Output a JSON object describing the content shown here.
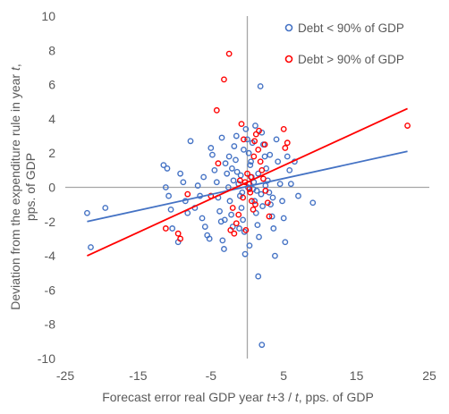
{
  "chart_data": {
    "type": "scatter",
    "xlabel": "Forecast error real GDP year t+3 / t, pps. of GDP",
    "xlabel_parts": [
      {
        "text": "Forecast error real GDP year ",
        "italic": false
      },
      {
        "text": "t",
        "italic": true
      },
      {
        "text": "+3 / ",
        "italic": false
      },
      {
        "text": "t",
        "italic": true
      },
      {
        "text": ", pps. of GDP",
        "italic": false
      }
    ],
    "ylabel_line1_parts": [
      {
        "text": "Deviation from the expenditure rule in year ",
        "italic": false
      },
      {
        "text": "t",
        "italic": true
      },
      {
        "text": ",",
        "italic": false
      }
    ],
    "ylabel_line2": "pps. of GDP",
    "xlim": [
      -25,
      25
    ],
    "ylim": [
      -10,
      10
    ],
    "xticks": [
      "-25",
      "-15",
      "-5",
      "5",
      "15",
      "25"
    ],
    "yticks": [
      "10",
      "8",
      "6",
      "4",
      "2",
      "0",
      "-2",
      "-4",
      "-6",
      "-8",
      "-10"
    ],
    "legend_position": "top-right",
    "series": [
      {
        "name": "Debt < 90% of GDP",
        "color": "#4472c4",
        "marker": "circle-open",
        "trendline": {
          "x": [
            -22,
            22
          ],
          "y": [
            -2.0,
            2.1
          ]
        },
        "points": [
          [
            -22,
            -1.5
          ],
          [
            -21.5,
            -3.5
          ],
          [
            -19.5,
            -1.2
          ],
          [
            -11.5,
            1.3
          ],
          [
            -11.2,
            0.0
          ],
          [
            -11.0,
            1.1
          ],
          [
            -10.8,
            -0.5
          ],
          [
            -10.5,
            -1.3
          ],
          [
            -10.3,
            -2.4
          ],
          [
            -9.5,
            -3.2
          ],
          [
            -9.2,
            0.8
          ],
          [
            -8.8,
            0.3
          ],
          [
            -8.5,
            -0.8
          ],
          [
            -8.2,
            -1.5
          ],
          [
            -7.8,
            2.7
          ],
          [
            -7.2,
            -1.2
          ],
          [
            -6.8,
            0.1
          ],
          [
            -6.5,
            -0.5
          ],
          [
            -6.2,
            -1.8
          ],
          [
            -6.0,
            0.6
          ],
          [
            -5.8,
            -2.3
          ],
          [
            -5.5,
            -2.8
          ],
          [
            -5.2,
            -3.0
          ],
          [
            -5.0,
            2.3
          ],
          [
            -4.8,
            1.9
          ],
          [
            -4.5,
            1.0
          ],
          [
            -4.2,
            0.3
          ],
          [
            -4.0,
            -0.6
          ],
          [
            -3.8,
            -1.4
          ],
          [
            -3.6,
            -2.0
          ],
          [
            -3.4,
            -3.1
          ],
          [
            -3.2,
            -3.6
          ],
          [
            -3.0,
            1.4
          ],
          [
            -2.8,
            0.8
          ],
          [
            -2.6,
            0.0
          ],
          [
            -2.4,
            -0.8
          ],
          [
            -2.2,
            -1.6
          ],
          [
            -2.0,
            -2.3
          ],
          [
            -1.8,
            2.4
          ],
          [
            -1.6,
            1.6
          ],
          [
            -1.4,
            0.9
          ],
          [
            -1.2,
            0.2
          ],
          [
            -1.0,
            -0.5
          ],
          [
            -0.8,
            -1.2
          ],
          [
            -0.6,
            -1.9
          ],
          [
            -0.4,
            -2.6
          ],
          [
            -0.2,
            3.4
          ],
          [
            0.0,
            2.8
          ],
          [
            0.2,
            2.0
          ],
          [
            0.4,
            1.3
          ],
          [
            0.6,
            0.6
          ],
          [
            0.8,
            -0.1
          ],
          [
            1.0,
            -0.8
          ],
          [
            1.2,
            -1.5
          ],
          [
            1.4,
            -2.2
          ],
          [
            1.6,
            -2.9
          ],
          [
            1.8,
            5.9
          ],
          [
            2.0,
            3.2
          ],
          [
            2.2,
            2.5
          ],
          [
            2.4,
            1.8
          ],
          [
            2.6,
            1.1
          ],
          [
            2.8,
            0.4
          ],
          [
            3.0,
            -0.3
          ],
          [
            3.2,
            -1.0
          ],
          [
            3.4,
            -1.7
          ],
          [
            3.6,
            -2.4
          ],
          [
            3.8,
            -4.0
          ],
          [
            1.5,
            -5.2
          ],
          [
            2.0,
            -9.2
          ],
          [
            4.0,
            2.8
          ],
          [
            4.2,
            1.5
          ],
          [
            4.5,
            0.2
          ],
          [
            4.8,
            -0.8
          ],
          [
            5.0,
            -1.8
          ],
          [
            5.2,
            -3.2
          ],
          [
            5.5,
            1.8
          ],
          [
            5.8,
            1.0
          ],
          [
            6.0,
            0.2
          ],
          [
            6.5,
            1.5
          ],
          [
            7.0,
            -0.5
          ],
          [
            9.0,
            -0.9
          ],
          [
            -1.5,
            3.0
          ],
          [
            -0.5,
            2.2
          ],
          [
            0.5,
            1.5
          ],
          [
            1.5,
            0.8
          ],
          [
            2.5,
            0.1
          ],
          [
            3.5,
            -0.6
          ],
          [
            -3.5,
            2.9
          ],
          [
            -2.5,
            1.8
          ],
          [
            0.3,
            -3.4
          ],
          [
            -0.3,
            -3.9
          ],
          [
            1.1,
            3.6
          ],
          [
            -1.1,
            -2.4
          ],
          [
            2.1,
            -1.1
          ],
          [
            -2.1,
            1.1
          ],
          [
            0.7,
            2.6
          ],
          [
            -0.7,
            -0.3
          ],
          [
            1.9,
            -0.4
          ],
          [
            -1.9,
            0.4
          ],
          [
            3.1,
            1.9
          ],
          [
            -3.1,
            -1.9
          ],
          [
            0.1,
            0.0
          ],
          [
            0.9,
            0.3
          ],
          [
            -0.9,
            0.7
          ],
          [
            1.3,
            -0.2
          ]
        ]
      },
      {
        "name": "Debt > 90% of GDP",
        "color": "#ff0000",
        "marker": "circle-open",
        "trendline": {
          "x": [
            -22,
            22
          ],
          "y": [
            -4.0,
            4.6
          ]
        },
        "points": [
          [
            -11.2,
            -2.4
          ],
          [
            -9.5,
            -2.7
          ],
          [
            -9.2,
            -3.0
          ],
          [
            -8.2,
            -0.4
          ],
          [
            -4.2,
            4.5
          ],
          [
            -4.0,
            1.4
          ],
          [
            -3.2,
            6.3
          ],
          [
            -2.5,
            7.8
          ],
          [
            -2.0,
            -1.2
          ],
          [
            -1.5,
            -2.1
          ],
          [
            -1.0,
            0.4
          ],
          [
            -0.8,
            3.7
          ],
          [
            -0.5,
            2.8
          ],
          [
            0.0,
            0.8
          ],
          [
            0.2,
            0.2
          ],
          [
            0.4,
            -0.3
          ],
          [
            0.6,
            -0.8
          ],
          [
            0.8,
            -1.3
          ],
          [
            1.0,
            2.7
          ],
          [
            1.2,
            3.1
          ],
          [
            1.5,
            2.2
          ],
          [
            1.8,
            1.5
          ],
          [
            2.0,
            1.0
          ],
          [
            2.2,
            0.5
          ],
          [
            2.5,
            -0.2
          ],
          [
            2.8,
            -0.9
          ],
          [
            3.0,
            -1.7
          ],
          [
            -0.2,
            -2.5
          ],
          [
            0.3,
            -0.1
          ],
          [
            -0.3,
            0.3
          ],
          [
            0.5,
            0.6
          ],
          [
            -0.6,
            -0.6
          ],
          [
            1.6,
            3.3
          ],
          [
            2.4,
            2.5
          ],
          [
            -2.3,
            -2.5
          ],
          [
            -1.8,
            -2.7
          ],
          [
            5.0,
            3.4
          ],
          [
            5.5,
            2.6
          ],
          [
            5.2,
            2.3
          ],
          [
            22.0,
            3.6
          ],
          [
            -5.0,
            -0.5
          ],
          [
            1.1,
            -1.0
          ],
          [
            -1.2,
            -1.6
          ],
          [
            0.9,
            1.8
          ]
        ]
      }
    ]
  }
}
